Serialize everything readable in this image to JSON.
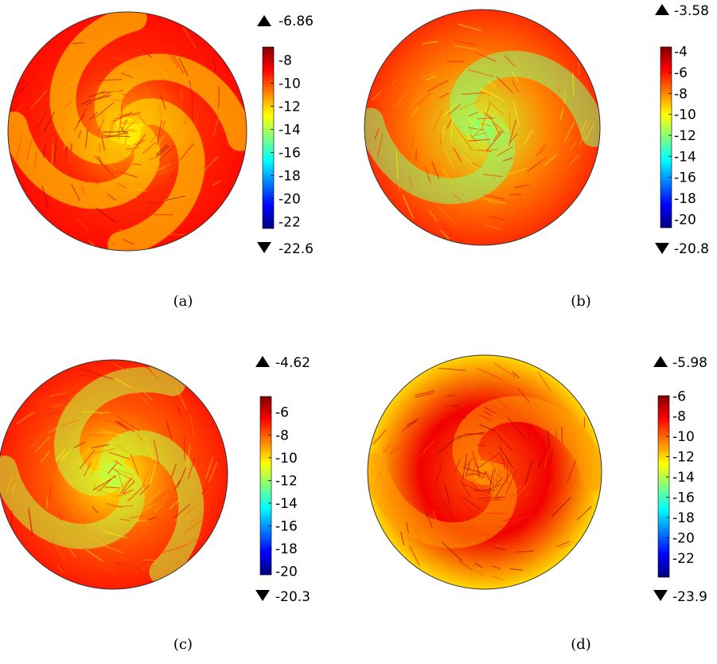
{
  "chart_data": [
    {
      "type": "heatmap",
      "caption": "(a)",
      "max_value": "-6.86",
      "min_value": "-22.6",
      "colorbar_ticks": [
        -8,
        -10,
        -12,
        -14,
        -16,
        -18,
        -20,
        -22
      ],
      "range": [
        -22.6,
        -6.86
      ],
      "dominant_value": -9.5,
      "core_value": -11.5,
      "arms": 4,
      "rim_value": -9
    },
    {
      "type": "heatmap",
      "caption": "(b)",
      "max_value": "-3.58",
      "min_value": "-20.8",
      "colorbar_ticks": [
        -4,
        -6,
        -8,
        -10,
        -12,
        -14,
        -16,
        -18,
        -20
      ],
      "range": [
        -20.8,
        -3.58
      ],
      "dominant_value": -8,
      "core_value": -11,
      "arms": 2,
      "rim_value": -6.5
    },
    {
      "type": "heatmap",
      "caption": "(c)",
      "max_value": "-4.62",
      "min_value": "-20.3",
      "colorbar_ticks": [
        -6,
        -8,
        -10,
        -12,
        -14,
        -16,
        -18,
        -20
      ],
      "range": [
        -20.3,
        -4.62
      ],
      "dominant_value": -8,
      "core_value": -10.5,
      "arms": 3,
      "rim_value": -7
    },
    {
      "type": "heatmap",
      "caption": "(d)",
      "max_value": "-5.98",
      "min_value": "-23.9",
      "colorbar_ticks": [
        -6,
        -8,
        -10,
        -12,
        -14,
        -16,
        -18,
        -20,
        -22
      ],
      "range": [
        -23.9,
        -5.98
      ],
      "dominant_value": -8,
      "core_value": -10,
      "arms": 2,
      "rim_value": -12
    }
  ],
  "colors": {
    "jet": [
      "#00007f",
      "#0000ff",
      "#007fff",
      "#00ffff",
      "#7fff7f",
      "#ffff00",
      "#ff7f00",
      "#ff0000",
      "#7f0000"
    ],
    "outline": "#333333"
  },
  "icons": {
    "max_marker": "triangle-up",
    "min_marker": "triangle-down"
  }
}
